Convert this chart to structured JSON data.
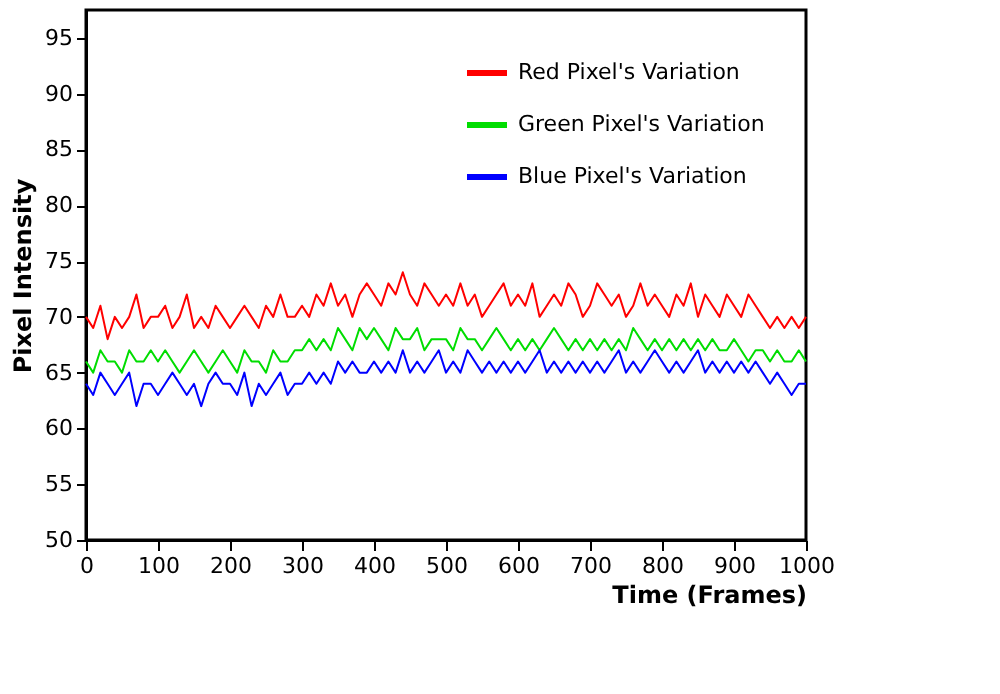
{
  "chart_data": {
    "type": "line",
    "xlabel": "Time (Frames)",
    "ylabel": "Pixel Intensity",
    "x": [
      0,
      10,
      20,
      30,
      40,
      50,
      60,
      70,
      80,
      90,
      100,
      110,
      120,
      130,
      140,
      150,
      160,
      170,
      180,
      190,
      200,
      210,
      220,
      230,
      240,
      250,
      260,
      270,
      280,
      290,
      300,
      310,
      320,
      330,
      340,
      350,
      360,
      370,
      380,
      390,
      400,
      410,
      420,
      430,
      440,
      450,
      460,
      470,
      480,
      490,
      500,
      510,
      520,
      530,
      540,
      550,
      560,
      570,
      580,
      590,
      600,
      610,
      620,
      630,
      640,
      650,
      660,
      670,
      680,
      690,
      700,
      710,
      720,
      730,
      740,
      750,
      760,
      770,
      780,
      790,
      800,
      810,
      820,
      830,
      840,
      850,
      860,
      870,
      880,
      890,
      900,
      910,
      920,
      930,
      940,
      950,
      960,
      970,
      980,
      990,
      1000
    ],
    "series": [
      {
        "name": "Red Pixel's Variation",
        "color": "#ff0000",
        "values": [
          70,
          69,
          71,
          68,
          70,
          69,
          70,
          72,
          69,
          70,
          70,
          71,
          69,
          70,
          72,
          69,
          70,
          69,
          71,
          70,
          69,
          70,
          71,
          70,
          69,
          71,
          70,
          72,
          70,
          70,
          71,
          70,
          72,
          71,
          73,
          71,
          72,
          70,
          72,
          73,
          72,
          71,
          73,
          72,
          74,
          72,
          71,
          73,
          72,
          71,
          72,
          71,
          73,
          71,
          72,
          70,
          71,
          72,
          73,
          71,
          72,
          71,
          73,
          70,
          71,
          72,
          71,
          73,
          72,
          70,
          71,
          73,
          72,
          71,
          72,
          70,
          71,
          73,
          71,
          72,
          71,
          70,
          72,
          71,
          73,
          70,
          72,
          71,
          70,
          72,
          71,
          70,
          72,
          71,
          70,
          69,
          70,
          69,
          70,
          69,
          70
        ]
      },
      {
        "name": "Green Pixel's Variation",
        "color": "#00dd00",
        "values": [
          66,
          65,
          67,
          66,
          66,
          65,
          67,
          66,
          66,
          67,
          66,
          67,
          66,
          65,
          66,
          67,
          66,
          65,
          66,
          67,
          66,
          65,
          67,
          66,
          66,
          65,
          67,
          66,
          66,
          67,
          67,
          68,
          67,
          68,
          67,
          69,
          68,
          67,
          69,
          68,
          69,
          68,
          67,
          69,
          68,
          68,
          69,
          67,
          68,
          68,
          68,
          67,
          69,
          68,
          68,
          67,
          68,
          69,
          68,
          67,
          68,
          67,
          68,
          67,
          68,
          69,
          68,
          67,
          68,
          67,
          68,
          67,
          68,
          67,
          68,
          67,
          69,
          68,
          67,
          68,
          67,
          68,
          67,
          68,
          67,
          68,
          67,
          68,
          67,
          67,
          68,
          67,
          66,
          67,
          67,
          66,
          67,
          66,
          66,
          67,
          66
        ]
      },
      {
        "name": "Blue Pixel's Variation",
        "color": "#0000ff",
        "values": [
          64,
          63,
          65,
          64,
          63,
          64,
          65,
          62,
          64,
          64,
          63,
          64,
          65,
          64,
          63,
          64,
          62,
          64,
          65,
          64,
          64,
          63,
          65,
          62,
          64,
          63,
          64,
          65,
          63,
          64,
          64,
          65,
          64,
          65,
          64,
          66,
          65,
          66,
          65,
          65,
          66,
          65,
          66,
          65,
          67,
          65,
          66,
          65,
          66,
          67,
          65,
          66,
          65,
          67,
          66,
          65,
          66,
          65,
          66,
          65,
          66,
          65,
          66,
          67,
          65,
          66,
          65,
          66,
          65,
          66,
          65,
          66,
          65,
          66,
          67,
          65,
          66,
          65,
          66,
          67,
          66,
          65,
          66,
          65,
          66,
          67,
          65,
          66,
          65,
          66,
          65,
          66,
          65,
          66,
          65,
          64,
          65,
          64,
          63,
          64,
          64
        ]
      }
    ],
    "xlim": [
      0,
      1000
    ],
    "xticks": [
      0,
      100,
      200,
      300,
      400,
      500,
      600,
      700,
      800,
      900,
      1000
    ],
    "ylim": [
      50,
      97.5
    ],
    "yticks": [
      50,
      55,
      60,
      65,
      70,
      75,
      80,
      85,
      90,
      95
    ],
    "grid": false,
    "legend": "top right",
    "marker": "none",
    "line_style": "solid"
  }
}
